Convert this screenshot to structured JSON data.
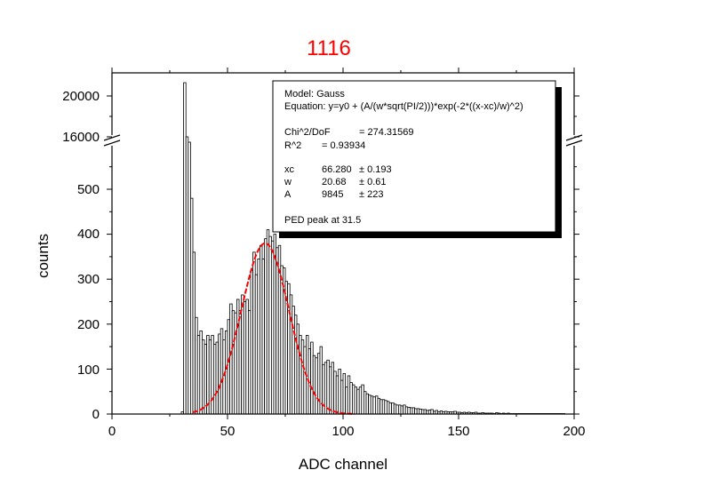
{
  "chart_data": {
    "type": "bar",
    "title": "1116",
    "xlabel": "ADC channel",
    "ylabel": "counts",
    "xlim": [
      0,
      200
    ],
    "ylim_lower": [
      0,
      600
    ],
    "ylim_upper": [
      16000,
      20000
    ],
    "x_ticks": [
      "0",
      "50",
      "100",
      "150",
      "200"
    ],
    "y_ticks_lower": [
      "0",
      "100",
      "200",
      "300",
      "400",
      "500"
    ],
    "y_ticks_upper": [
      "16000",
      "20000"
    ],
    "axis_break": true,
    "bar_width": 1,
    "bar_fill": "#ffffff",
    "bar_edge": "#000000",
    "colors": {
      "title": "#ff0000",
      "fit": "#ff0000"
    },
    "histogram": {
      "x": [
        30,
        31,
        32,
        33,
        34,
        35,
        36,
        37,
        38,
        39,
        40,
        41,
        42,
        43,
        44,
        45,
        46,
        47,
        48,
        49,
        50,
        51,
        52,
        53,
        54,
        55,
        56,
        57,
        58,
        59,
        60,
        61,
        62,
        63,
        64,
        65,
        66,
        67,
        68,
        69,
        70,
        71,
        72,
        73,
        74,
        75,
        76,
        77,
        78,
        79,
        80,
        81,
        82,
        83,
        84,
        85,
        86,
        87,
        88,
        89,
        90,
        91,
        92,
        93,
        94,
        95,
        96,
        97,
        98,
        99,
        100,
        101,
        102,
        103,
        104,
        105,
        106,
        107,
        108,
        109,
        110,
        111,
        112,
        113,
        114,
        115,
        116,
        117,
        118,
        119,
        120,
        121,
        122,
        123,
        124,
        125,
        126,
        127,
        128,
        129,
        130,
        131,
        132,
        133,
        134,
        135,
        136,
        137,
        138,
        139,
        140,
        141,
        142,
        143,
        144,
        145,
        146,
        147,
        148,
        149,
        150,
        151,
        152,
        153,
        154,
        155,
        156,
        157,
        158,
        159,
        160,
        161,
        162,
        163,
        164,
        165,
        166,
        167,
        168,
        169,
        170,
        171,
        172,
        173,
        174,
        175,
        176,
        177,
        178,
        179,
        180,
        181,
        182,
        183,
        184,
        185,
        186,
        187,
        188,
        189,
        190,
        191,
        192,
        193,
        194,
        195
      ],
      "counts": [
        5,
        21300,
        16000,
        2000,
        480,
        360,
        215,
        175,
        185,
        165,
        155,
        175,
        165,
        175,
        155,
        160,
        178,
        190,
        165,
        185,
        210,
        245,
        230,
        225,
        255,
        230,
        265,
        250,
        255,
        230,
        320,
        360,
        310,
        345,
        375,
        345,
        390,
        410,
        395,
        385,
        400,
        370,
        375,
        330,
        325,
        295,
        290,
        265,
        240,
        220,
        200,
        175,
        165,
        150,
        175,
        145,
        160,
        130,
        125,
        135,
        150,
        110,
        115,
        120,
        105,
        115,
        95,
        85,
        100,
        75,
        90,
        60,
        85,
        70,
        65,
        60,
        55,
        60,
        65,
        50,
        45,
        42,
        40,
        38,
        40,
        35,
        32,
        32,
        30,
        28,
        25,
        25,
        22,
        20,
        20,
        18,
        20,
        16,
        15,
        14,
        14,
        12,
        12,
        11,
        10,
        10,
        8,
        9,
        10,
        6,
        8,
        5,
        7,
        5,
        6,
        5,
        5,
        5,
        6,
        4,
        4,
        3,
        4,
        3,
        4,
        3,
        3,
        4,
        2,
        2,
        3,
        2,
        2,
        2,
        2,
        1,
        3,
        2,
        1,
        2,
        1,
        2,
        1,
        1,
        1,
        1,
        1,
        1,
        1,
        1,
        1,
        1,
        1,
        1,
        1,
        1,
        1,
        1,
        1,
        1,
        1,
        1,
        1,
        1,
        1,
        1
      ]
    },
    "fit": {
      "name": "Gauss",
      "y0": 0,
      "xc": 66.28,
      "w": 20.68,
      "A": 9845,
      "x_range": [
        35,
        105
      ]
    }
  },
  "fit_box": {
    "model": "Model: Gauss",
    "equation": "Equation: y=y0 + (A/(w*sqrt(PI/2)))*exp(-2*((x-xc)/w)^2)",
    "chi_label": "Chi^2/DoF",
    "chi_value": "= 274.31569",
    "r2_label": "R^2",
    "r2_value": "=  0.93934",
    "params": [
      {
        "name": "xc",
        "value": "66.280",
        "error": "± 0.193"
      },
      {
        "name": "w",
        "value": "20.68",
        "error": "± 0.61"
      },
      {
        "name": "A",
        "value": "9845",
        "error": "± 223"
      }
    ],
    "note": "PED peak at 31.5"
  }
}
